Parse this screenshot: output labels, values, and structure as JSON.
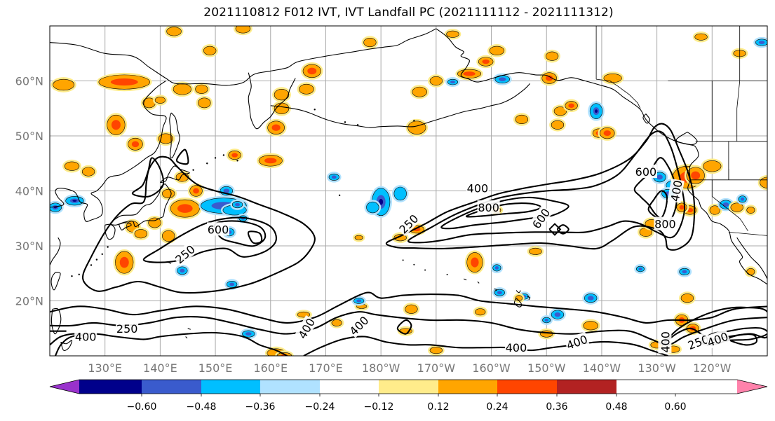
{
  "title": "2021110812 F012 IVT, IVT Landfall PC (2021111112 - 2021111312)",
  "map": {
    "lat_ticks": [
      "20°N",
      "30°N",
      "40°N",
      "50°N",
      "60°N"
    ],
    "lon_ticks": [
      "130°E",
      "140°E",
      "150°E",
      "160°E",
      "170°E",
      "180°W",
      "170°W",
      "160°W",
      "150°W",
      "140°W",
      "130°W",
      "120°W"
    ],
    "lat_range": [
      10,
      70
    ],
    "lon_range": [
      120,
      250
    ],
    "grid": true,
    "contour_levels": [
      250,
      400,
      600,
      800
    ],
    "contour_labels": [
      {
        "text": "250",
        "lon": 134.0,
        "lat": 15.0,
        "rot": 0
      },
      {
        "text": "400",
        "lon": 126.5,
        "lat": 13.5,
        "rot": 0
      },
      {
        "text": "400",
        "lon": 176.0,
        "lat": 15.5,
        "rot": -45
      },
      {
        "text": "400",
        "lon": 204.5,
        "lat": 11.5,
        "rot": 0
      },
      {
        "text": "400",
        "lon": 166.5,
        "lat": 15.0,
        "rot": -60
      },
      {
        "text": "600",
        "lon": 150.5,
        "lat": 33.0,
        "rot": 0
      },
      {
        "text": "250",
        "lon": 144.5,
        "lat": 28.5,
        "rot": -40
      },
      {
        "text": "250",
        "lon": 185.0,
        "lat": 34.0,
        "rot": -45
      },
      {
        "text": "400",
        "lon": 197.5,
        "lat": 40.5,
        "rot": 0
      },
      {
        "text": "800",
        "lon": 199.5,
        "lat": 37.0,
        "rot": 0
      },
      {
        "text": "600",
        "lon": 209.0,
        "lat": 35.0,
        "rot": -55
      },
      {
        "text": "600",
        "lon": 228.0,
        "lat": 43.5,
        "rot": 0
      },
      {
        "text": "800",
        "lon": 231.5,
        "lat": 34.0,
        "rot": 0
      },
      {
        "text": "400",
        "lon": 233.5,
        "lat": 40.0,
        "rot": -80
      },
      {
        "text": "400",
        "lon": 215.5,
        "lat": 12.5,
        "rot": -20
      },
      {
        "text": "250",
        "lon": 237.5,
        "lat": 12.5,
        "rot": -20
      },
      {
        "text": "400",
        "lon": 241.0,
        "lat": 13.0,
        "rot": -20
      },
      {
        "text": "400",
        "lon": 231.5,
        "lat": 12.5,
        "rot": -90
      }
    ]
  },
  "colorbar": {
    "tick_labels": [
      "−0.60",
      "−0.48",
      "−0.36",
      "−0.24",
      "−0.12",
      "0.12",
      "0.24",
      "0.36",
      "0.48",
      "0.60"
    ],
    "bounds": [
      -0.72,
      -0.6,
      -0.48,
      -0.36,
      -0.24,
      -0.12,
      0.12,
      0.24,
      0.36,
      0.48,
      0.6,
      0.72
    ],
    "colors": [
      "#9932cc",
      "#00008b",
      "#3a5bcd",
      "#00bfff",
      "#b0e2ff",
      "#ffffff",
      "#ffec8b",
      "#ffa500",
      "#ff4500",
      "#b22222",
      "#ff82ab"
    ]
  },
  "colors": {
    "contour": "#000000",
    "coast": "#000000",
    "grid": "#a9a9a9",
    "axis_labels": "#777777"
  }
}
